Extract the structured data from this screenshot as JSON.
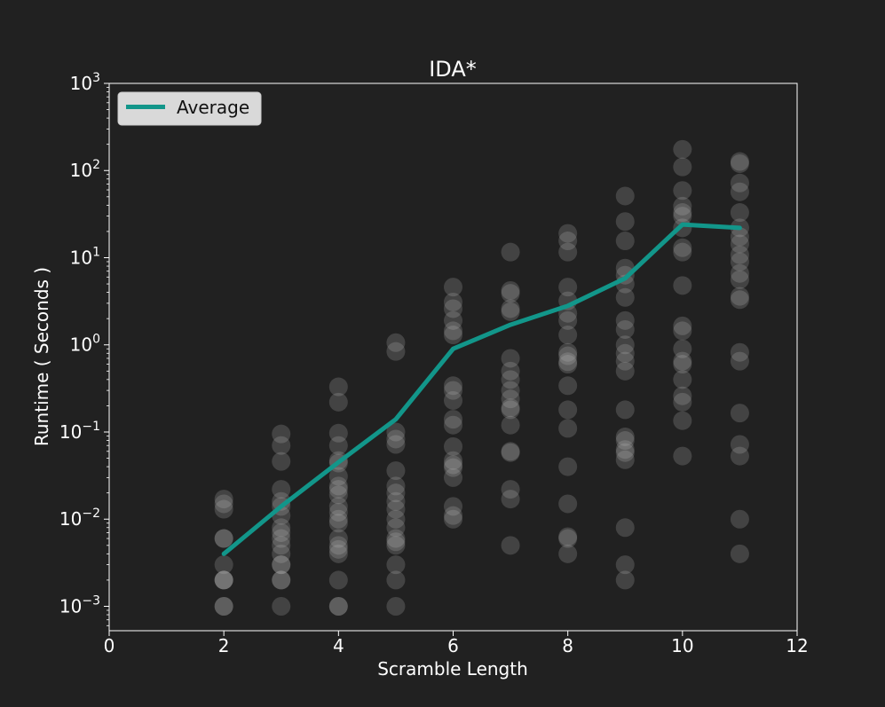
{
  "chart_data": {
    "type": "scatter",
    "title": "IDA*",
    "xlabel": "Scramble Length",
    "ylabel": "Runtime ( Seconds )",
    "xlim": [
      0,
      12
    ],
    "ylim_exponent": [
      -3.28,
      3
    ],
    "yscale": "log",
    "x_ticks": [
      "0",
      "2",
      "4",
      "6",
      "8",
      "10",
      "12"
    ],
    "y_ticks": [
      {
        "base": "10",
        "exp": "3",
        "value": 1000
      },
      {
        "base": "10",
        "exp": "2",
        "value": 100
      },
      {
        "base": "10",
        "exp": "1",
        "value": 10
      },
      {
        "base": "10",
        "exp": "0",
        "value": 1
      },
      {
        "base": "10",
        "exp": "−1",
        "value": 0.1
      },
      {
        "base": "10",
        "exp": "−2",
        "value": 0.01
      },
      {
        "base": "10",
        "exp": "−3",
        "value": 0.001
      }
    ],
    "grid": false,
    "legend_position": "top-left",
    "series": [
      {
        "name": "Average",
        "kind": "line",
        "color": "#12968a",
        "x": [
          2,
          3,
          4,
          5,
          6,
          7,
          8,
          9,
          10,
          11
        ],
        "y": [
          0.004,
          0.014,
          0.045,
          0.14,
          0.9,
          1.7,
          2.8,
          5.8,
          24,
          22
        ]
      },
      {
        "kind": "scatter",
        "color": "#bdbdbd",
        "points": [
          {
            "x": 2,
            "ys": [
              0.001,
              0.001,
              0.002,
              0.002,
              0.002,
              0.003,
              0.006,
              0.006,
              0.013,
              0.015,
              0.017
            ]
          },
          {
            "x": 3,
            "ys": [
              0.001,
              0.002,
              0.002,
              0.003,
              0.003,
              0.004,
              0.005,
              0.006,
              0.007,
              0.008,
              0.011,
              0.014,
              0.016,
              0.022,
              0.046,
              0.07,
              0.095
            ]
          },
          {
            "x": 4,
            "ys": [
              0.001,
              0.001,
              0.002,
              0.004,
              0.0045,
              0.005,
              0.006,
              0.009,
              0.01,
              0.012,
              0.014,
              0.019,
              0.022,
              0.024,
              0.031,
              0.044,
              0.047,
              0.07,
              0.097,
              0.22,
              0.33
            ]
          },
          {
            "x": 5,
            "ys": [
              0.001,
              0.002,
              0.003,
              0.005,
              0.0055,
              0.006,
              0.008,
              0.01,
              0.013,
              0.016,
              0.02,
              0.024,
              0.036,
              0.072,
              0.083,
              0.1,
              0.84,
              1.06
            ]
          },
          {
            "x": 6,
            "ys": [
              0.01,
              0.011,
              0.014,
              0.03,
              0.039,
              0.042,
              0.047,
              0.068,
              0.12,
              0.14,
              0.23,
              0.3,
              0.34,
              1.3,
              1.45,
              1.9,
              2.6,
              3.1,
              4.6
            ]
          },
          {
            "x": 7,
            "ys": [
              0.005,
              0.017,
              0.022,
              0.058,
              0.06,
              0.12,
              0.18,
              0.19,
              0.24,
              0.3,
              0.4,
              0.5,
              0.7,
              2.4,
              2.6,
              3.9,
              4.2,
              11.6
            ]
          },
          {
            "x": 8,
            "ys": [
              0.004,
              0.006,
              0.0063,
              0.015,
              0.04,
              0.11,
              0.18,
              0.34,
              0.6,
              0.64,
              0.75,
              0.82,
              1.3,
              1.9,
              2.3,
              3.2,
              4.6,
              11.6,
              15.6,
              19
            ]
          },
          {
            "x": 9,
            "ys": [
              0.002,
              0.003,
              0.008,
              0.048,
              0.058,
              0.063,
              0.08,
              0.088,
              0.18,
              0.5,
              0.65,
              0.8,
              1.0,
              1.5,
              1.9,
              3.5,
              5.0,
              6.3,
              7.6,
              15.6,
              26,
              51
            ]
          },
          {
            "x": 10,
            "ys": [
              0.053,
              0.135,
              0.22,
              0.26,
              0.4,
              0.6,
              0.65,
              0.9,
              1.45,
              1.65,
              4.8,
              11.6,
              13,
              22,
              30,
              33,
              39,
              59,
              110,
              175
            ]
          },
          {
            "x": 11,
            "ys": [
              0.004,
              0.01,
              0.053,
              0.072,
              0.165,
              0.65,
              0.82,
              3.3,
              3.6,
              5.6,
              6.6,
              9,
              10.8,
              14.4,
              17.4,
              22,
              33,
              57,
              72,
              120,
              127
            ]
          }
        ]
      }
    ]
  }
}
